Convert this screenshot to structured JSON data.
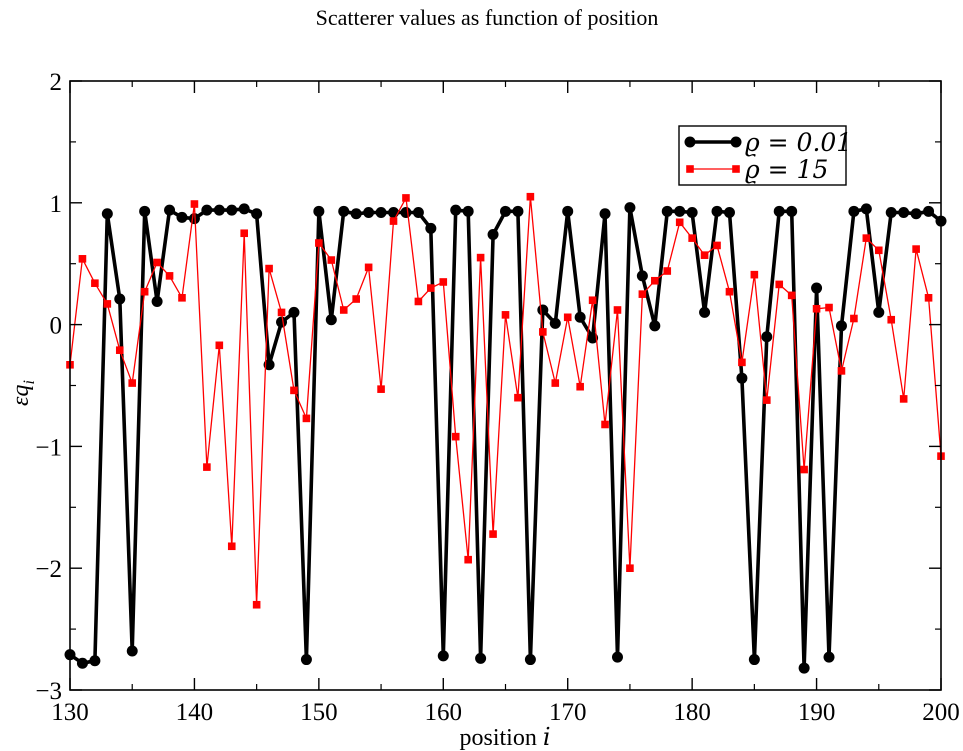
{
  "chart_data": {
    "type": "line",
    "title": "Scatterer values as function of position",
    "xlabel": "position i",
    "ylabel": "εq_i",
    "xlim": [
      130,
      200
    ],
    "ylim": [
      -3,
      2
    ],
    "xticks": [
      130,
      140,
      150,
      160,
      170,
      180,
      190,
      200
    ],
    "yticks": [
      -3,
      -2,
      -1,
      0,
      1,
      2
    ],
    "xtick_labels": [
      "130",
      "140",
      "150",
      "160",
      "170",
      "180",
      "190",
      "200"
    ],
    "ytick_labels": [
      "−3",
      "−2",
      "−1",
      "0",
      "1",
      "2"
    ],
    "grid": false,
    "legend_position": "top-right",
    "x": [
      130,
      131,
      132,
      133,
      134,
      135,
      136,
      137,
      138,
      139,
      140,
      141,
      142,
      143,
      144,
      145,
      146,
      147,
      148,
      149,
      150,
      151,
      152,
      153,
      154,
      155,
      156,
      157,
      158,
      159,
      160,
      161,
      162,
      163,
      164,
      165,
      166,
      167,
      168,
      169,
      170,
      171,
      172,
      173,
      174,
      175,
      176,
      177,
      178,
      179,
      180,
      181,
      182,
      183,
      184,
      185,
      186,
      187,
      188,
      189,
      190,
      191,
      192,
      193,
      194,
      195,
      196,
      197,
      198,
      199,
      200
    ],
    "series": [
      {
        "name": "ϱ = 0.01",
        "color": "#000000",
        "marker": "circle",
        "values": [
          -2.71,
          -2.78,
          -2.76,
          0.91,
          0.21,
          -2.68,
          0.93,
          0.19,
          0.94,
          0.88,
          0.87,
          0.94,
          0.94,
          0.94,
          0.95,
          0.91,
          -0.33,
          0.02,
          0.1,
          -2.75,
          0.93,
          0.04,
          0.93,
          0.91,
          0.92,
          0.92,
          0.92,
          0.92,
          0.92,
          0.79,
          -2.72,
          0.94,
          0.93,
          -2.74,
          0.74,
          0.93,
          0.93,
          -2.75,
          0.12,
          0.01,
          0.93,
          0.06,
          -0.11,
          0.91,
          -2.73,
          0.96,
          0.4,
          -0.01,
          0.93,
          0.93,
          0.92,
          0.1,
          0.93,
          0.92,
          -0.44,
          -2.75,
          -0.1,
          0.93,
          0.93,
          -2.82,
          0.3,
          -2.73,
          -0.01,
          0.93,
          0.95,
          0.1,
          0.92,
          0.92,
          0.91,
          0.93,
          0.85
        ]
      },
      {
        "name": "ϱ = 15",
        "color": "#ff0000",
        "marker": "square",
        "values": [
          -0.33,
          0.54,
          0.34,
          0.17,
          -0.21,
          -0.48,
          0.27,
          0.51,
          0.4,
          0.22,
          0.99,
          -1.17,
          -0.17,
          -1.82,
          0.75,
          -2.3,
          0.46,
          0.1,
          -0.54,
          -0.77,
          0.67,
          0.53,
          0.12,
          0.21,
          0.47,
          -0.53,
          0.85,
          1.04,
          0.19,
          0.3,
          0.35,
          -0.92,
          -1.93,
          0.55,
          -1.72,
          0.08,
          -0.6,
          1.05,
          -0.06,
          -0.48,
          0.06,
          -0.51,
          0.2,
          -0.82,
          0.12,
          -2.0,
          0.25,
          0.36,
          0.44,
          0.84,
          0.71,
          0.57,
          0.65,
          0.27,
          -0.31,
          0.41,
          -0.62,
          0.33,
          0.24,
          -1.19,
          0.13,
          0.14,
          -0.38,
          0.05,
          0.71,
          0.61,
          0.04,
          -0.61,
          0.62,
          0.22,
          -1.08
        ]
      }
    ]
  }
}
